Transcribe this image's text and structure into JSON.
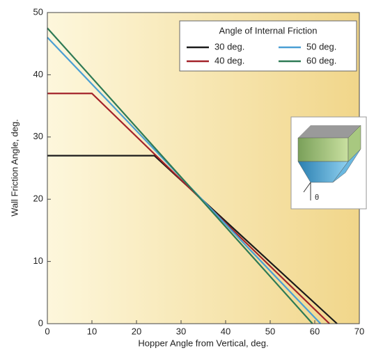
{
  "chart_data": {
    "type": "line",
    "x_label": "Hopper Angle from Vertical, deg.",
    "y_label": "Wall Friction Angle, deg.",
    "legend_title": "Angle of Internal Friction",
    "legend": "upper right",
    "xlim": [
      0,
      70
    ],
    "xticks": [
      0,
      10,
      20,
      30,
      40,
      50,
      60,
      70
    ],
    "ylim": [
      0,
      50
    ],
    "yticks": [
      0,
      10,
      20,
      30,
      40,
      50
    ],
    "series": [
      {
        "name": "30 deg.",
        "color": "#1a1a1a",
        "x": [
          0,
          24,
          65
        ],
        "values": [
          27,
          27,
          0
        ]
      },
      {
        "name": "40 deg.",
        "color": "#a3232a",
        "x": [
          0,
          10,
          63.3
        ],
        "values": [
          37,
          37,
          0
        ]
      },
      {
        "name": "50 deg.",
        "color": "#4a9fd4",
        "x": [
          0,
          61.3
        ],
        "values": [
          46,
          0
        ]
      },
      {
        "name": "60 deg.",
        "color": "#2e7a55",
        "x": [
          0,
          59.5
        ],
        "values": [
          47.5,
          0
        ]
      }
    ],
    "inset": {
      "label": "θ"
    }
  }
}
